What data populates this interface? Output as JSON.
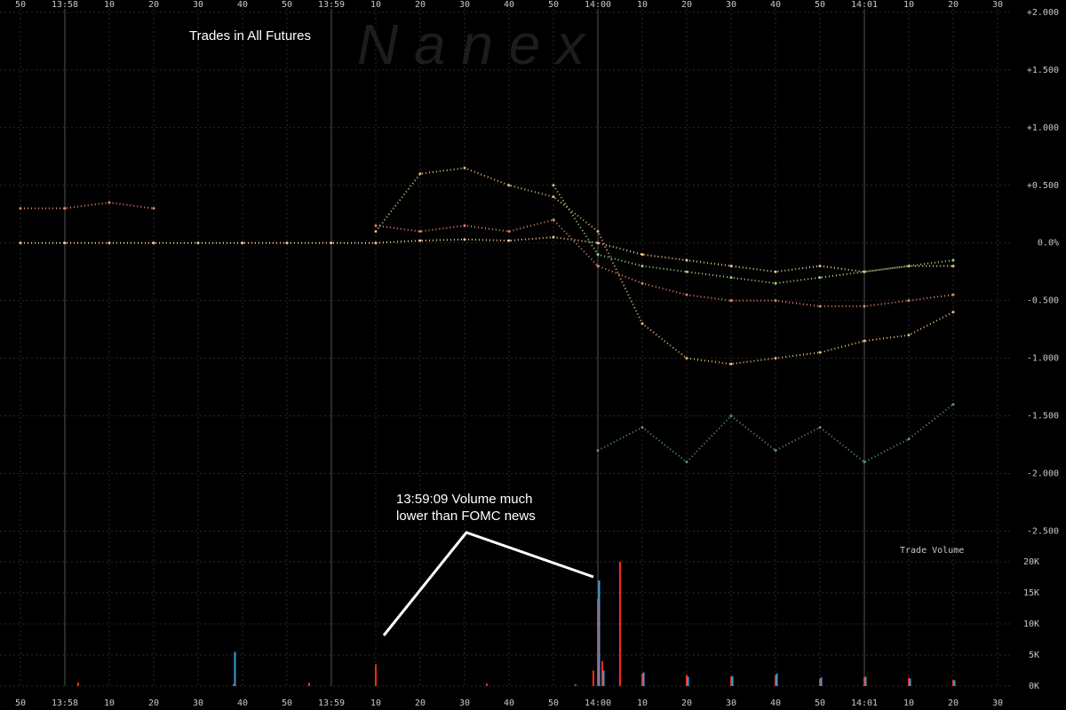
{
  "chart_data": {
    "type": "scatter",
    "title": "Trades in All Futures",
    "watermark": "N a n e x",
    "annotation": [
      "13:59:09 Volume much",
      "lower than FOMC news"
    ],
    "volume_label": "Trade Volume",
    "grid": true,
    "x": [
      -10,
      0,
      10,
      20,
      30,
      40,
      50,
      60,
      70,
      80,
      90,
      100,
      110,
      120,
      130,
      140,
      150,
      160,
      170,
      180,
      190,
      200
    ],
    "xlim": [
      -14.6,
      213.4
    ],
    "xticks": [
      {
        "value": -10,
        "label": "50"
      },
      {
        "value": 0,
        "label": "13:58"
      },
      {
        "value": 10,
        "label": "10"
      },
      {
        "value": 20,
        "label": "20"
      },
      {
        "value": 30,
        "label": "30"
      },
      {
        "value": 40,
        "label": "40"
      },
      {
        "value": 50,
        "label": "50"
      },
      {
        "value": 60,
        "label": "13:59"
      },
      {
        "value": 70,
        "label": "10"
      },
      {
        "value": 80,
        "label": "20"
      },
      {
        "value": 90,
        "label": "30"
      },
      {
        "value": 100,
        "label": "40"
      },
      {
        "value": 110,
        "label": "50"
      },
      {
        "value": 120,
        "label": "14:00"
      },
      {
        "value": 130,
        "label": "10"
      },
      {
        "value": 140,
        "label": "20"
      },
      {
        "value": 150,
        "label": "30"
      },
      {
        "value": 160,
        "label": "40"
      },
      {
        "value": 170,
        "label": "50"
      },
      {
        "value": 180,
        "label": "14:01"
      },
      {
        "value": 190,
        "label": "10"
      },
      {
        "value": 200,
        "label": "20"
      },
      {
        "value": 210,
        "label": "30"
      }
    ],
    "ylim": [
      -2.55,
      2.03
    ],
    "yticks": [
      {
        "value": 2,
        "label": "+2.000"
      },
      {
        "value": 1.5,
        "label": "+1.500"
      },
      {
        "value": 1,
        "label": "+1.000"
      },
      {
        "value": 0.5,
        "label": "+0.500"
      },
      {
        "value": 0,
        "label": "0.0%"
      },
      {
        "value": -0.5,
        "label": "-0.500"
      },
      {
        "value": -1,
        "label": "-1.000"
      },
      {
        "value": -1.5,
        "label": "-1.500"
      },
      {
        "value": -2,
        "label": "-2.000"
      },
      {
        "value": -2.5,
        "label": "-2.500"
      }
    ],
    "series": [
      {
        "color": "#e8b878",
        "values": [
          null,
          null,
          null,
          null,
          null,
          null,
          null,
          null,
          0.1,
          0.6,
          0.65,
          0.5,
          0.4,
          0.1,
          -0.7,
          -1.0,
          -1.05,
          -1.0,
          -0.95,
          -0.85,
          -0.8,
          -0.6
        ]
      },
      {
        "color": "#f0c890",
        "values": [
          0,
          0,
          0,
          0,
          0,
          0,
          0,
          0,
          0,
          0.02,
          0.03,
          0.02,
          0.05,
          0,
          -0.1,
          -0.15,
          -0.2,
          -0.25,
          -0.2,
          -0.25,
          -0.2,
          -0.2
        ]
      },
      {
        "color": "#e8806a",
        "values": [
          0.3,
          0.3,
          0.35,
          0.3,
          null,
          null,
          null,
          null,
          0.15,
          0.1,
          0.15,
          0.1,
          0.2,
          -0.2,
          -0.35,
          -0.45,
          -0.5,
          -0.5,
          -0.55,
          -0.55,
          -0.5,
          -0.45
        ]
      },
      {
        "color": "#9ad87a",
        "values": [
          null,
          null,
          null,
          null,
          null,
          null,
          null,
          null,
          null,
          null,
          null,
          null,
          0.5,
          -0.1,
          -0.2,
          -0.25,
          -0.3,
          -0.35,
          -0.3,
          -0.25,
          -0.2,
          -0.15
        ]
      },
      {
        "color": "#5e9a6a",
        "values": [
          null,
          null,
          null,
          null,
          null,
          null,
          null,
          null,
          null,
          null,
          null,
          null,
          null,
          -1.8,
          -1.6,
          -1.9,
          -1.5,
          -1.8,
          -1.6,
          -1.9,
          -1.7,
          -1.4
        ]
      }
    ],
    "volume": {
      "x": [
        3,
        38,
        55,
        70,
        95,
        115,
        119,
        120,
        121,
        125,
        130,
        140,
        150,
        160,
        170,
        180,
        190,
        200
      ],
      "ylim": [
        0,
        24000
      ],
      "yticks": [
        {
          "value": 0,
          "label": "0K"
        },
        {
          "value": 5000,
          "label": "5K"
        },
        {
          "value": 10000,
          "label": "10K"
        },
        {
          "value": 15000,
          "label": "15K"
        },
        {
          "value": 20000,
          "label": "20K"
        }
      ],
      "series": [
        {
          "color": "#ff2a1a",
          "values": [
            600,
            300,
            500,
            3500,
            400,
            300,
            2500,
            14000,
            4000,
            20000,
            2000,
            1800,
            1500,
            1700,
            1200,
            1400,
            1300,
            1000
          ]
        },
        {
          "color": "#3aa0d8",
          "values": [
            null,
            5500,
            null,
            null,
            null,
            null,
            null,
            17000,
            2500,
            null,
            2200,
            1500,
            1600,
            2000,
            1400,
            1500,
            1200,
            900
          ]
        }
      ]
    }
  }
}
